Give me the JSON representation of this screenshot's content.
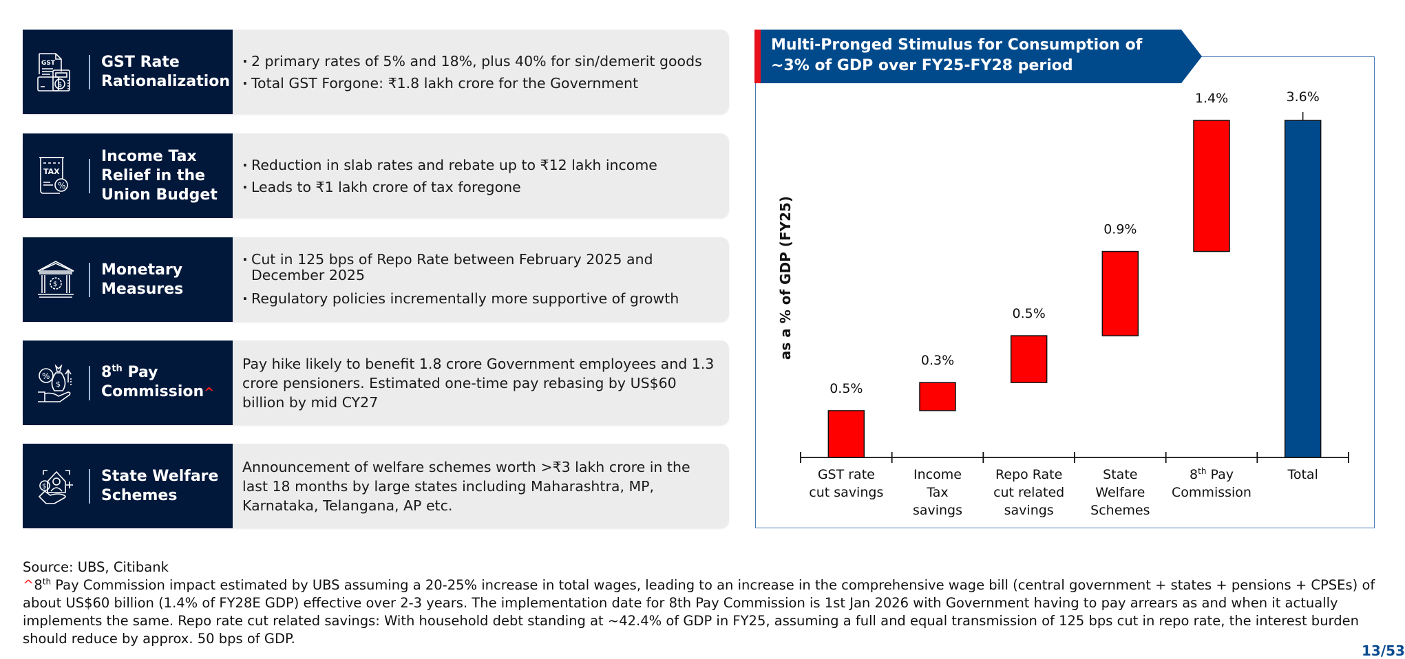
{
  "cards": [
    {
      "icon": "gst-document-icon",
      "title_lines": [
        "GST Rate",
        "Rationalization"
      ],
      "bullets": [
        "2 primary rates of 5% and 18%, plus 40% for sin/demerit goods",
        "Total GST Forgone: ₹1.8 lakh crore for the Government"
      ]
    },
    {
      "icon": "tax-receipt-icon",
      "title_lines": [
        "Income Tax",
        "Relief in the",
        "Union Budget"
      ],
      "bullets": [
        "Reduction in slab rates and rebate up to ₹12 lakh income",
        "Leads to ₹1 lakh crore of tax foregone"
      ]
    },
    {
      "icon": "bank-building-icon",
      "title_lines": [
        "Monetary",
        "Measures"
      ],
      "bullets": [
        "Cut in 125 bps of Repo Rate between February 2025 and December 2025",
        "Regulatory policies incrementally more supportive of growth"
      ]
    },
    {
      "icon": "money-bag-hand-icon",
      "title_prefix": "8",
      "title_sup": "th",
      "title_rest": " Pay",
      "title_line2": "Commission",
      "title_marker": "^",
      "paragraph": "Pay hike likely to benefit 1.8 crore Government employees and 1.3 crore pensioners. Estimated one-time pay rebasing by US$60 billion by mid CY27"
    },
    {
      "icon": "house-hand-welfare-icon",
      "title_lines": [
        "State Welfare",
        "Schemes"
      ],
      "paragraph": "Announcement of welfare schemes worth >₹3 lakh crore in the last 18 months by large states including Maharashtra, MP, Karnataka, Telangana, AP etc."
    }
  ],
  "chart_data": {
    "type": "bar",
    "subtype": "waterfall",
    "title": "Multi-Pronged Stimulus for Consumption of ~3% of GDP over FY25-FY28 period",
    "xlabel": "",
    "ylabel": "as a % of GDP (FY25)",
    "categories": [
      "GST rate cut savings",
      "Income Tax savings",
      "Repo Rate cut related savings",
      "State Welfare Schemes",
      "8th Pay Commission",
      "Total"
    ],
    "category_lines": [
      [
        "GST rate",
        "cut savings"
      ],
      [
        "Income",
        "Tax",
        "savings"
      ],
      [
        "Repo Rate",
        "cut related",
        "savings"
      ],
      [
        "State",
        "Welfare",
        "Schemes"
      ],
      [
        "8th Pay",
        "Commission"
      ],
      [
        "Total"
      ]
    ],
    "values": [
      0.5,
      0.3,
      0.5,
      0.9,
      1.4,
      3.6
    ],
    "labels": [
      "0.5%",
      "0.3%",
      "0.5%",
      "0.9%",
      "1.4%",
      "3.6%"
    ],
    "is_total": [
      false,
      false,
      false,
      false,
      false,
      true
    ],
    "ylim": [
      0,
      3.6
    ],
    "grid": false,
    "legend": "none",
    "colors": {
      "increment": "#ff0000",
      "total": "#004a8c"
    }
  },
  "colors": {
    "card_head": "#02183b",
    "card_body": "#ececec",
    "banner": "#004a8c",
    "banner_accent": "#e8101c",
    "frame": "#4a7ab5"
  },
  "footnotes": {
    "source": "Source: UBS, Citibank",
    "marker": "^",
    "note_prefix": "8",
    "note_sup": "th",
    "note": " Pay Commission impact estimated by UBS assuming a 20-25% increase in total wages, leading to an increase in the comprehensive wage bill (central government + states + pensions + CPSEs) of about US$60 billion (1.4% of FY28E GDP) effective over 2-3 years. The implementation date for 8th Pay Commission is 1st Jan 2026 with Government having to pay arrears as and when it actually implements the same. Repo rate cut related savings: With household debt standing at ~42.4% of GDP in FY25, assuming a full and equal transmission of 125 bps cut in repo rate, the interest burden should reduce by approx. 50 bps of GDP."
  },
  "page_number": "13/53"
}
